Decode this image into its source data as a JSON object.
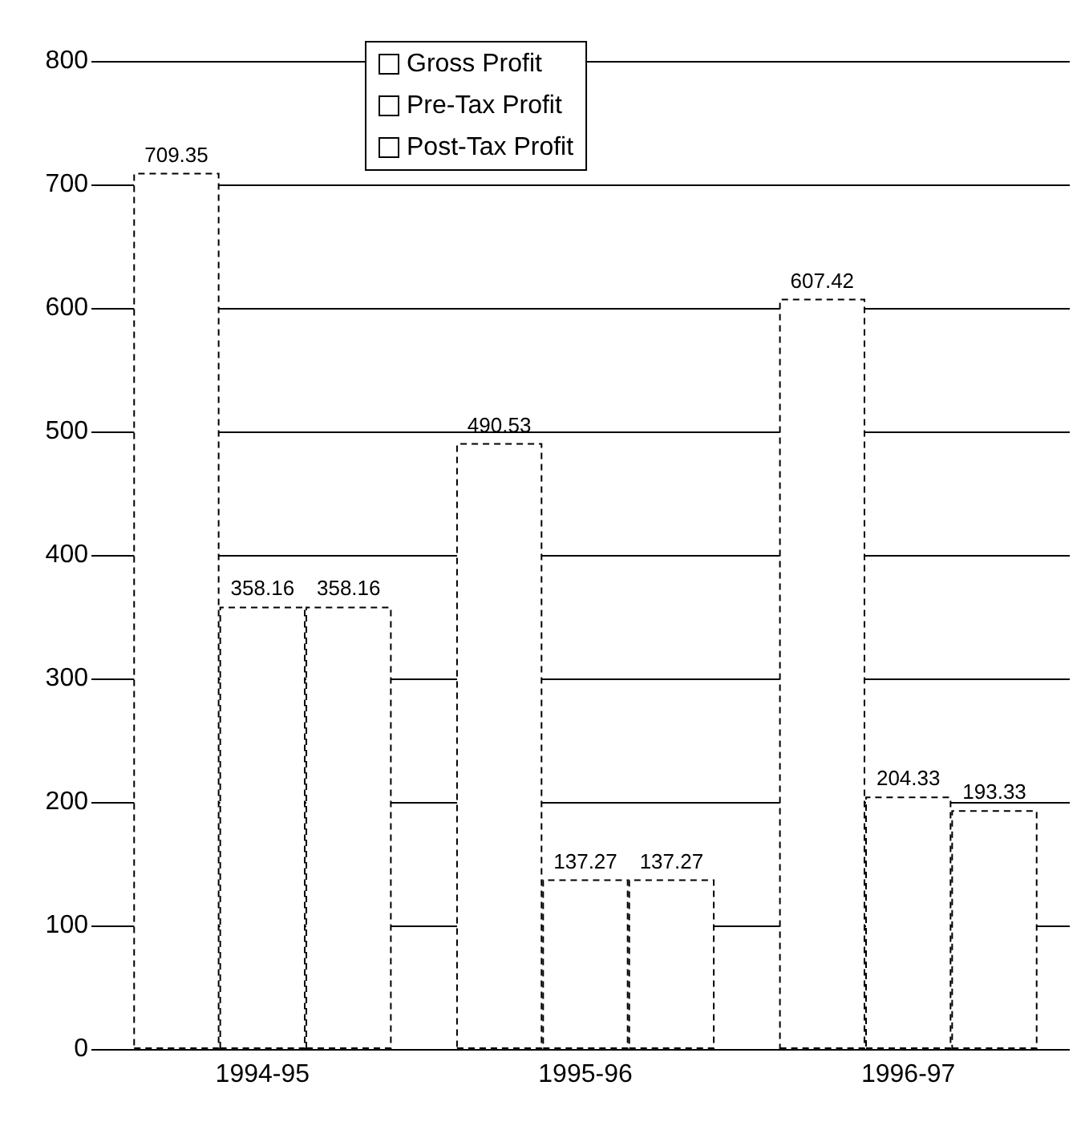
{
  "chart_data": {
    "type": "bar",
    "categories": [
      "1994-95",
      "1995-96",
      "1996-97"
    ],
    "series": [
      {
        "name": "Gross Profit",
        "color": "#ffffff",
        "values": [
          709.35,
          490.53,
          607.42
        ]
      },
      {
        "name": "Pre-Tax Profit",
        "color": "#ffffff",
        "values": [
          358.16,
          137.27,
          204.33
        ]
      },
      {
        "name": "Post-Tax Profit",
        "color": "#ffffff",
        "values": [
          358.16,
          137.27,
          193.33
        ]
      }
    ],
    "ylim": [
      0,
      800
    ],
    "yticks": [
      0,
      100,
      200,
      300,
      400,
      500,
      600,
      700,
      800
    ],
    "grid": "y",
    "legend": "top",
    "data_labels": true,
    "line_style": "dashed"
  }
}
